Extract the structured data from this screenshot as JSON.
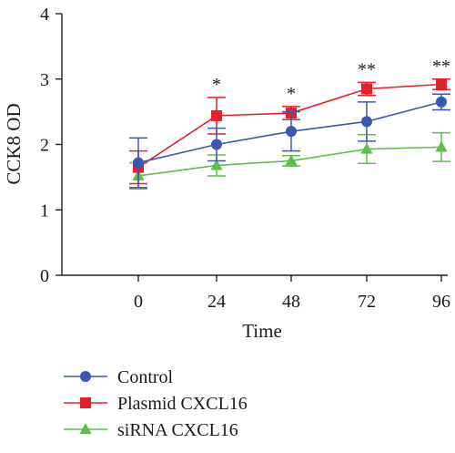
{
  "chart_data": {
    "type": "line",
    "x": [
      0,
      24,
      48,
      72,
      96
    ],
    "xlabel": "Time",
    "ylabel": "CCK8 OD",
    "xticks": [
      "0",
      "24",
      "48",
      "72",
      "96"
    ],
    "yticks": [
      "0",
      "1",
      "2",
      "3",
      "4"
    ],
    "ylim": [
      0,
      4
    ],
    "grid": false,
    "legend_position": "bottom-left",
    "series": [
      {
        "name": "Control",
        "color": "#3a57b5",
        "marker": "circle",
        "values": [
          1.72,
          2.0,
          2.2,
          2.35,
          2.65
        ],
        "errors": [
          0.38,
          0.25,
          0.3,
          0.3,
          0.12
        ]
      },
      {
        "name": "Plasmid CXCL16",
        "color": "#e5202a",
        "marker": "square",
        "values": [
          1.65,
          2.44,
          2.48,
          2.85,
          2.92
        ],
        "errors": [
          0.25,
          0.28,
          0.1,
          0.1,
          0.08
        ]
      },
      {
        "name": "siRNA CXCL16",
        "color": "#5cbf4a",
        "marker": "triangle",
        "values": [
          1.52,
          1.68,
          1.75,
          1.93,
          1.96
        ],
        "errors": [
          0.2,
          0.16,
          0.08,
          0.22,
          0.22
        ]
      }
    ],
    "annotations": [
      {
        "x": 24,
        "text": "*"
      },
      {
        "x": 48,
        "text": "*"
      },
      {
        "x": 72,
        "text": "**"
      },
      {
        "x": 96,
        "text": "**"
      }
    ]
  }
}
